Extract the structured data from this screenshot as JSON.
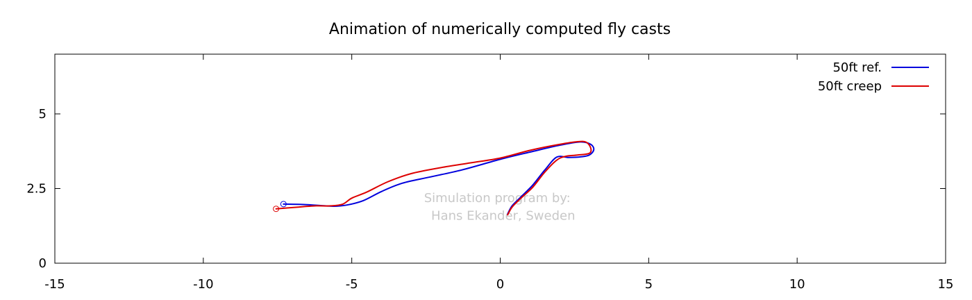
{
  "chart_data": {
    "type": "line",
    "title": "Animation of numerically computed fly casts",
    "xlabel": "",
    "ylabel": "",
    "xlim": [
      -15,
      15
    ],
    "ylim": [
      0,
      7
    ],
    "xticks": [
      -15,
      -10,
      -5,
      0,
      5,
      10,
      15
    ],
    "yticks": [
      0,
      2.5,
      5
    ],
    "ytick_labels": [
      "0",
      "2.5",
      "5"
    ],
    "xtick_labels": [
      "-15",
      "-10",
      "-5",
      "0",
      "5",
      "10",
      "15"
    ],
    "grid": false,
    "legend_position": "top-right",
    "series": [
      {
        "name": "50ft ref.",
        "color": "#0000dd",
        "x": [
          -7.3,
          -6.5,
          -5.9,
          -5.5,
          -5.1,
          -4.6,
          -4.0,
          -3.3,
          -2.4,
          -1.3,
          0.0,
          1.0,
          2.0,
          2.7,
          3.05,
          3.15,
          3.0,
          2.7,
          2.3,
          1.9,
          1.5,
          1.1,
          0.7,
          0.4,
          0.25
        ],
        "y": [
          1.98,
          1.96,
          1.92,
          1.91,
          1.96,
          2.1,
          2.4,
          2.68,
          2.88,
          3.12,
          3.48,
          3.72,
          3.95,
          4.06,
          3.98,
          3.8,
          3.62,
          3.56,
          3.54,
          3.55,
          3.12,
          2.62,
          2.22,
          1.92,
          1.65
        ],
        "marker_end": "circle"
      },
      {
        "name": "50ft creep",
        "color": "#dd0000",
        "x": [
          -7.55,
          -6.8,
          -6.2,
          -5.7,
          -5.3,
          -5.0,
          -4.5,
          -3.8,
          -3.0,
          -2.0,
          -1.0,
          0.0,
          1.0,
          2.0,
          2.6,
          2.9,
          3.05,
          3.0,
          2.6,
          2.2,
          1.9,
          1.5,
          1.1,
          0.7,
          0.4,
          0.25
        ],
        "y": [
          1.82,
          1.88,
          1.92,
          1.92,
          1.98,
          2.18,
          2.38,
          2.72,
          3.0,
          3.2,
          3.36,
          3.52,
          3.78,
          3.98,
          4.07,
          4.05,
          3.85,
          3.68,
          3.62,
          3.58,
          3.45,
          3.05,
          2.55,
          2.18,
          1.88,
          1.62
        ],
        "marker_end": "circle"
      }
    ],
    "annotations": [
      {
        "text": "Simulation program by:",
        "x": -0.1,
        "y": 2.05
      },
      {
        "text": "Hans Ekander, Sweden",
        "x": 0.1,
        "y": 1.45
      }
    ]
  }
}
